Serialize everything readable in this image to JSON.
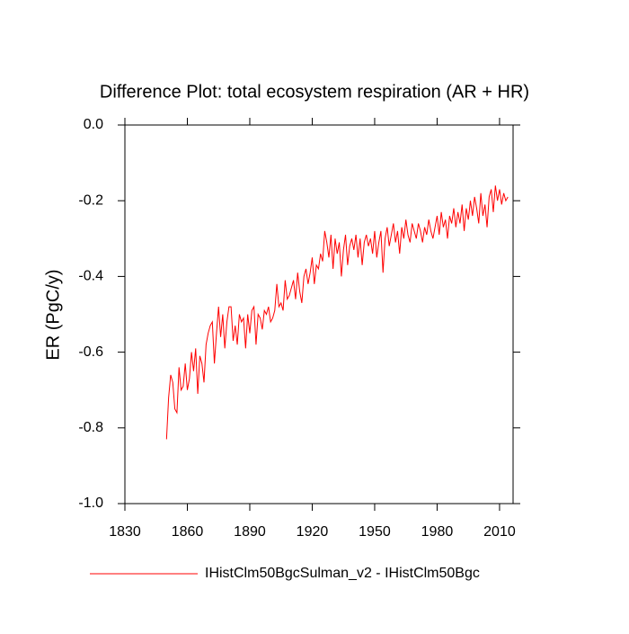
{
  "chart_data": {
    "type": "line",
    "title": "Difference Plot: total ecosystem respiration (AR + HR)",
    "y_label": "ER  (PgC/y)",
    "x": [
      1850,
      1851,
      1852,
      1853,
      1854,
      1855,
      1856,
      1857,
      1858,
      1859,
      1860,
      1861,
      1862,
      1863,
      1864,
      1865,
      1866,
      1867,
      1868,
      1869,
      1870,
      1871,
      1872,
      1873,
      1874,
      1875,
      1876,
      1877,
      1878,
      1879,
      1880,
      1881,
      1882,
      1883,
      1884,
      1885,
      1886,
      1887,
      1888,
      1889,
      1890,
      1891,
      1892,
      1893,
      1894,
      1895,
      1896,
      1897,
      1898,
      1899,
      1900,
      1901,
      1902,
      1903,
      1904,
      1905,
      1906,
      1907,
      1908,
      1909,
      1910,
      1911,
      1912,
      1913,
      1914,
      1915,
      1916,
      1917,
      1918,
      1919,
      1920,
      1921,
      1922,
      1923,
      1924,
      1925,
      1926,
      1927,
      1928,
      1929,
      1930,
      1931,
      1932,
      1933,
      1934,
      1935,
      1936,
      1937,
      1938,
      1939,
      1940,
      1941,
      1942,
      1943,
      1944,
      1945,
      1946,
      1947,
      1948,
      1949,
      1950,
      1951,
      1952,
      1953,
      1954,
      1955,
      1956,
      1957,
      1958,
      1959,
      1960,
      1961,
      1962,
      1963,
      1964,
      1965,
      1966,
      1967,
      1968,
      1969,
      1970,
      1971,
      1972,
      1973,
      1974,
      1975,
      1976,
      1977,
      1978,
      1979,
      1980,
      1981,
      1982,
      1983,
      1984,
      1985,
      1986,
      1987,
      1988,
      1989,
      1990,
      1991,
      1992,
      1993,
      1994,
      1995,
      1996,
      1997,
      1998,
      1999,
      2000,
      2001,
      2002,
      2003,
      2004,
      2005,
      2006,
      2007,
      2008,
      2009,
      2010,
      2011,
      2012,
      2013,
      2014
    ],
    "series": [
      {
        "name": "IHistClm50BgcSulman_v2 - IHistClm50Bgc",
        "color": "#ff0000",
        "values": [
          -0.83,
          -0.72,
          -0.66,
          -0.68,
          -0.75,
          -0.76,
          -0.64,
          -0.7,
          -0.69,
          -0.63,
          -0.7,
          -0.67,
          -0.6,
          -0.65,
          -0.59,
          -0.71,
          -0.61,
          -0.63,
          -0.68,
          -0.58,
          -0.55,
          -0.53,
          -0.52,
          -0.63,
          -0.55,
          -0.48,
          -0.56,
          -0.5,
          -0.59,
          -0.52,
          -0.48,
          -0.48,
          -0.57,
          -0.53,
          -0.58,
          -0.5,
          -0.52,
          -0.51,
          -0.59,
          -0.5,
          -0.55,
          -0.49,
          -0.48,
          -0.58,
          -0.5,
          -0.51,
          -0.54,
          -0.49,
          -0.5,
          -0.48,
          -0.52,
          -0.51,
          -0.49,
          -0.42,
          -0.48,
          -0.47,
          -0.49,
          -0.41,
          -0.46,
          -0.45,
          -0.43,
          -0.41,
          -0.46,
          -0.39,
          -0.44,
          -0.47,
          -0.4,
          -0.38,
          -0.42,
          -0.39,
          -0.35,
          -0.42,
          -0.37,
          -0.38,
          -0.34,
          -0.36,
          -0.28,
          -0.31,
          -0.35,
          -0.29,
          -0.38,
          -0.3,
          -0.34,
          -0.31,
          -0.4,
          -0.33,
          -0.29,
          -0.37,
          -0.32,
          -0.3,
          -0.33,
          -0.29,
          -0.35,
          -0.3,
          -0.37,
          -0.31,
          -0.29,
          -0.32,
          -0.3,
          -0.34,
          -0.28,
          -0.35,
          -0.31,
          -0.28,
          -0.39,
          -0.3,
          -0.27,
          -0.32,
          -0.29,
          -0.26,
          -0.31,
          -0.28,
          -0.34,
          -0.27,
          -0.3,
          -0.25,
          -0.29,
          -0.31,
          -0.26,
          -0.28,
          -0.3,
          -0.26,
          -0.28,
          -0.31,
          -0.27,
          -0.29,
          -0.25,
          -0.28,
          -0.3,
          -0.27,
          -0.24,
          -0.29,
          -0.23,
          -0.27,
          -0.25,
          -0.3,
          -0.24,
          -0.26,
          -0.22,
          -0.27,
          -0.23,
          -0.26,
          -0.21,
          -0.28,
          -0.22,
          -0.25,
          -0.2,
          -0.24,
          -0.19,
          -0.22,
          -0.26,
          -0.18,
          -0.24,
          -0.21,
          -0.27,
          -0.19,
          -0.17,
          -0.23,
          -0.16,
          -0.2,
          -0.17,
          -0.21,
          -0.18,
          -0.2,
          -0.19
        ]
      }
    ],
    "xlim": [
      1830,
      2016.5
    ],
    "xticks": [
      1830,
      1860,
      1890,
      1920,
      1950,
      1980,
      2010
    ],
    "ylim": [
      -1.0,
      0.0
    ],
    "yticks": [
      {
        "value": -1.0,
        "label": "-1.0"
      },
      -0.8,
      -0.6,
      -0.4,
      -0.2,
      {
        "value": 0.0,
        "label": "0.0"
      }
    ]
  }
}
